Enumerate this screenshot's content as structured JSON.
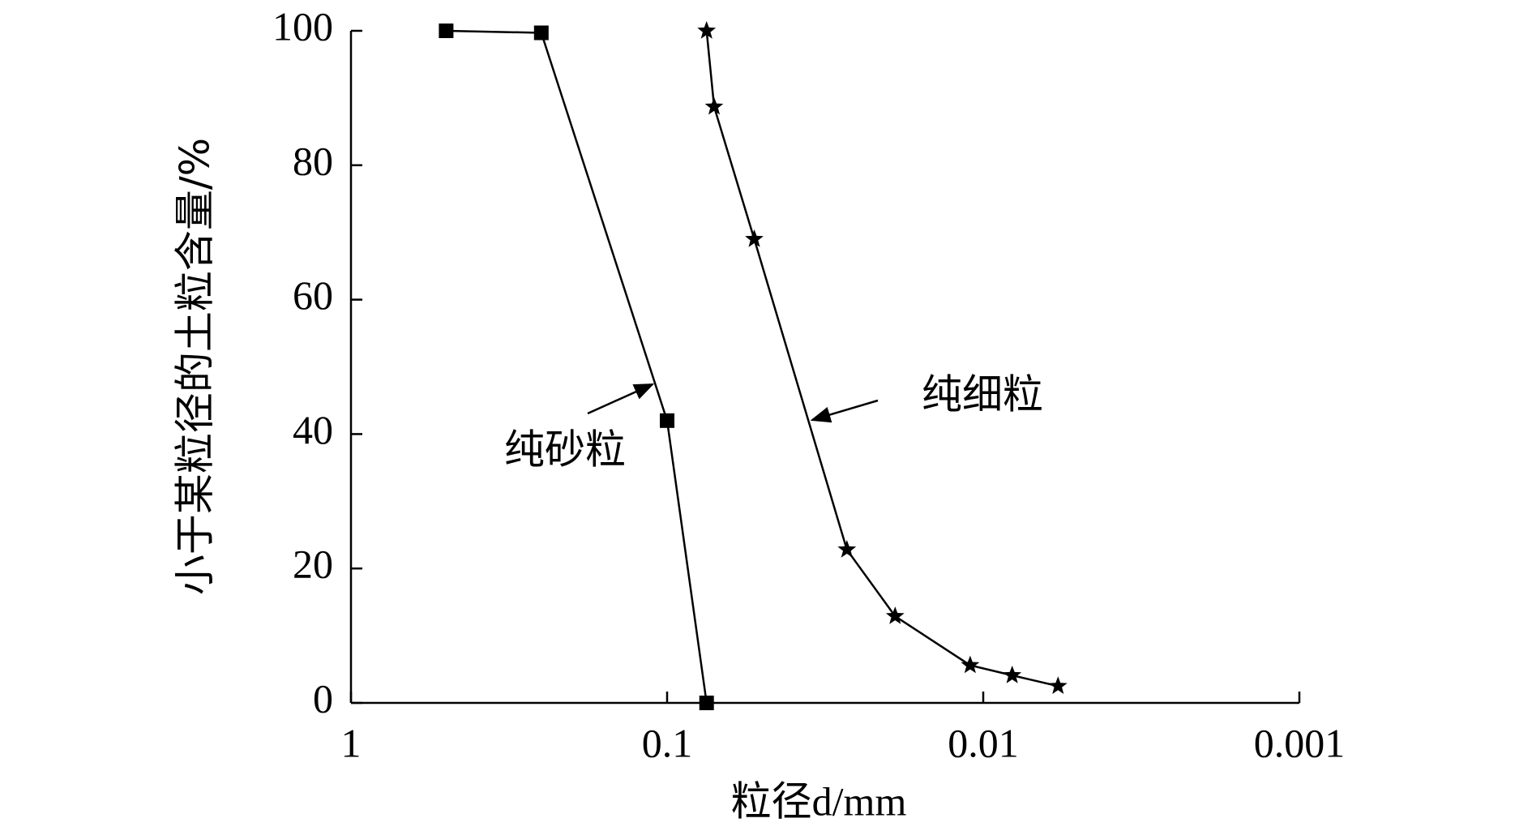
{
  "chart_data": {
    "type": "line",
    "xlabel": "粒径d/mm",
    "ylabel": "小于某粒径的土粒含量/%",
    "xscale": "log",
    "xlim": [
      1,
      0.001
    ],
    "xticks": [
      1,
      0.1,
      0.01,
      0.001
    ],
    "ylim": [
      0,
      100
    ],
    "yticks": [
      0,
      20,
      40,
      60,
      80,
      100
    ],
    "series": [
      {
        "color": "#000000",
        "marker": "square",
        "x": [
          0.5,
          0.25,
          0.1,
          0.075
        ],
        "values": [
          100,
          99.7,
          42,
          0
        ]
      },
      {
        "color": "#000000",
        "marker": "star",
        "x": [
          0.075,
          0.071,
          0.053,
          0.027,
          0.019,
          0.011,
          0.0081,
          0.0058
        ],
        "values": [
          100,
          88.7,
          69,
          22.8,
          12.9,
          5.6,
          4.1,
          2.5
        ]
      }
    ],
    "annotations": [
      {
        "text": "纯砂粒"
      },
      {
        "text": "纯细粒"
      }
    ]
  }
}
